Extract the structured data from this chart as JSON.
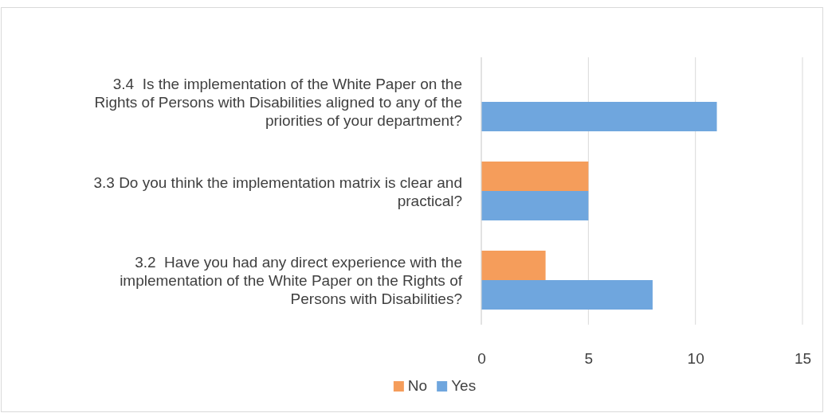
{
  "chart_data": {
    "type": "bar",
    "orientation": "horizontal",
    "categories": [
      "3.4  Is the implementation of the White Paper on the Rights of Persons with Disabilities aligned to any of the priorities of your department?",
      "3.3 Do you think the implementation matrix is clear and practical?",
      "3.2  Have you had any direct experience with the implementation of the White Paper on the Rights of Persons with Disabilities?"
    ],
    "series": [
      {
        "name": "No",
        "color": "#f59d5b",
        "values": [
          null,
          5,
          3
        ]
      },
      {
        "name": "Yes",
        "color": "#6fa6de",
        "values": [
          11,
          5,
          8
        ]
      }
    ],
    "xlim": [
      0,
      15
    ],
    "xticks": [
      0,
      5,
      10,
      15
    ],
    "grid": "x",
    "legend": "bottom"
  }
}
